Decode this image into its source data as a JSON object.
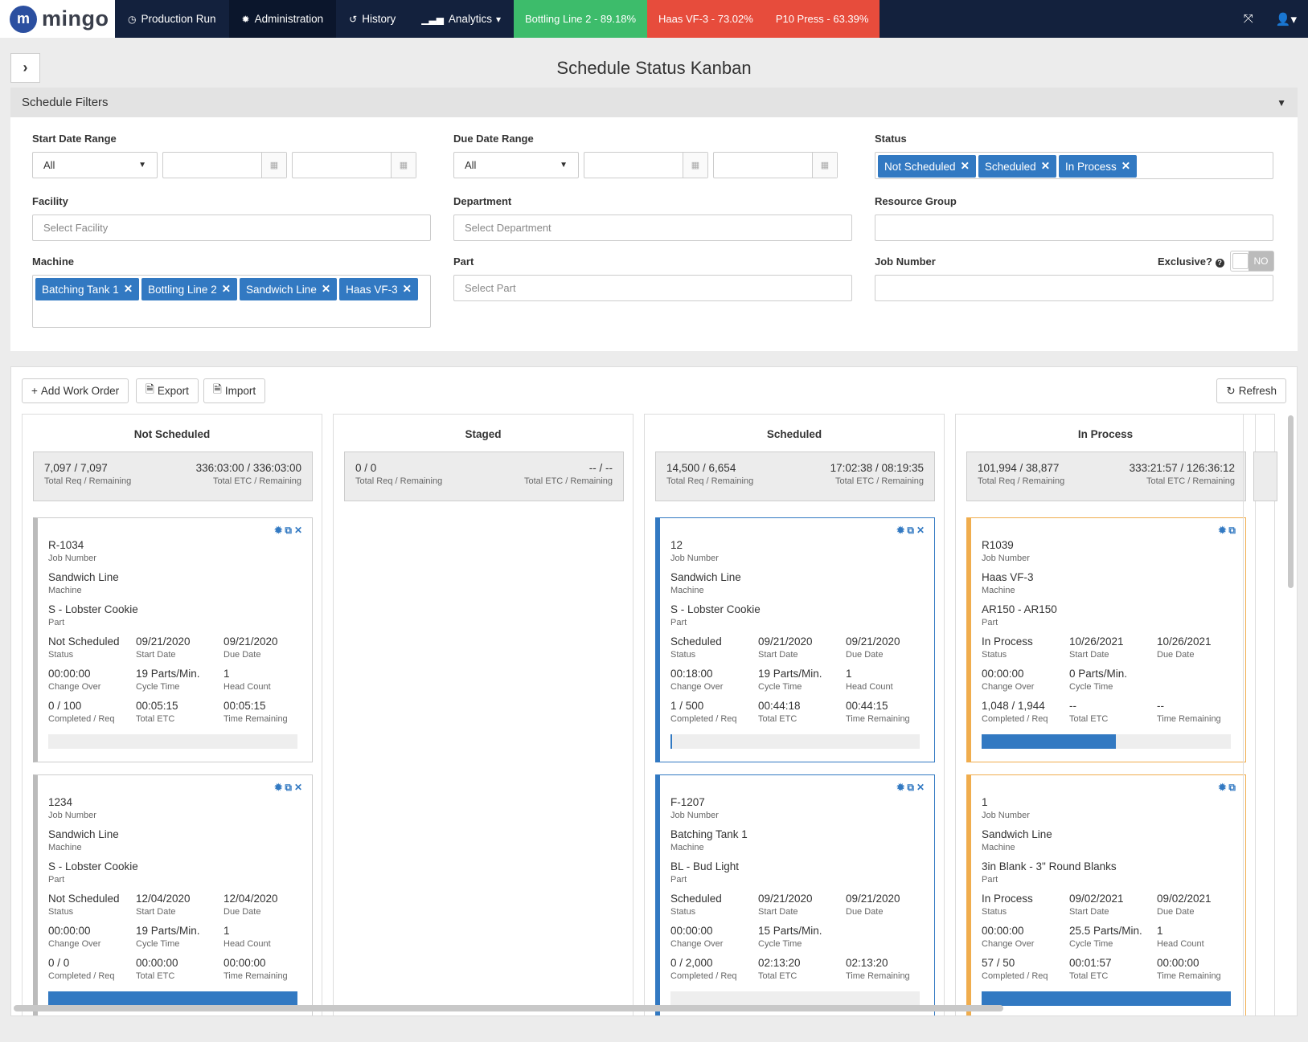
{
  "nav": {
    "brand": "mingo",
    "items": [
      {
        "label": "Production Run",
        "icon": "clock-icon"
      },
      {
        "label": "Administration",
        "icon": "gear-icon"
      },
      {
        "label": "History",
        "icon": "history-icon"
      },
      {
        "label": "Analytics",
        "icon": "bar-chart-icon"
      }
    ],
    "status_chips": [
      {
        "label": "Bottling Line 2 - 89.18%",
        "color": "#3dbc6b"
      },
      {
        "label": "Haas VF-3 - 73.02%",
        "color": "#e74c3c"
      },
      {
        "label": "P10 Press - 63.39%",
        "color": "#e74c3c"
      }
    ]
  },
  "page": {
    "title": "Schedule Status Kanban"
  },
  "filters": {
    "header": "Schedule Filters",
    "start_date_range": {
      "label": "Start Date Range",
      "value": "All"
    },
    "due_date_range": {
      "label": "Due Date Range",
      "value": "All"
    },
    "status": {
      "label": "Status",
      "tags": [
        "Not Scheduled",
        "Scheduled",
        "In Process"
      ]
    },
    "facility": {
      "label": "Facility",
      "placeholder": "Select Facility"
    },
    "department": {
      "label": "Department",
      "placeholder": "Select Department"
    },
    "resource_group": {
      "label": "Resource Group"
    },
    "machine": {
      "label": "Machine",
      "tags": [
        "Batching Tank 1",
        "Bottling Line 2",
        "Sandwich Line",
        "Haas VF-3"
      ]
    },
    "part": {
      "label": "Part",
      "placeholder": "Select Part"
    },
    "job_number": {
      "label": "Job Number"
    },
    "exclusive": {
      "label": "Exclusive?",
      "value": "NO"
    }
  },
  "toolbar": {
    "add": "Add Work Order",
    "export": "Export",
    "import": "Import",
    "refresh": "Refresh"
  },
  "labels": {
    "total_req": "Total Req / Remaining",
    "total_etc": "Total ETC / Remaining",
    "job_number": "Job Number",
    "machine": "Machine",
    "part": "Part",
    "status": "Status",
    "start_date": "Start Date",
    "due_date": "Due Date",
    "change_over": "Change Over",
    "cycle_time": "Cycle Time",
    "head_count": "Head Count",
    "completed": "Completed / Req",
    "total_etc_card": "Total ETC",
    "time_remaining": "Time Remaining"
  },
  "columns": [
    {
      "title": "Not Scheduled",
      "req": "7,097 / 7,097",
      "etc": "336:03:00 / 336:03:00",
      "cards": [
        {
          "job": "R-1034",
          "machine": "Sandwich Line",
          "part": "S - Lobster Cookie",
          "status": "Not Scheduled",
          "start": "09/21/2020",
          "due": "09/21/2020",
          "change_over": "00:00:00",
          "cycle": "19 Parts/Min.",
          "head": "1",
          "completed": "0 / 100",
          "etc": "00:05:15",
          "remaining": "00:05:15",
          "progress": 0
        },
        {
          "job": "1234",
          "machine": "Sandwich Line",
          "part": "S - Lobster Cookie",
          "status": "Not Scheduled",
          "start": "12/04/2020",
          "due": "12/04/2020",
          "change_over": "00:00:00",
          "cycle": "19 Parts/Min.",
          "head": "1",
          "completed": "0 / 0",
          "etc": "00:00:00",
          "remaining": "00:00:00",
          "progress": 1
        }
      ]
    },
    {
      "title": "Staged",
      "req": "0 / 0",
      "etc": "-- / --",
      "cards": []
    },
    {
      "title": "Scheduled",
      "req": "14,500 / 6,654",
      "etc": "17:02:38 / 08:19:35",
      "cards": [
        {
          "job": "12",
          "machine": "Sandwich Line",
          "part": "S - Lobster Cookie",
          "status": "Scheduled",
          "start": "09/21/2020",
          "due": "09/21/2020",
          "change_over": "00:18:00",
          "cycle": "19 Parts/Min.",
          "head": "1",
          "completed": "1 / 500",
          "etc": "00:44:18",
          "remaining": "00:44:15",
          "progress": 0.002
        },
        {
          "job": "F-1207",
          "machine": "Batching Tank 1",
          "part": "BL - Bud Light",
          "status": "Scheduled",
          "start": "09/21/2020",
          "due": "09/21/2020",
          "change_over": "00:00:00",
          "cycle": "15 Parts/Min.",
          "head": "",
          "completed": "0 / 2,000",
          "etc": "02:13:20",
          "remaining": "02:13:20",
          "progress": 0
        }
      ]
    },
    {
      "title": "In Process",
      "req": "101,994 / 38,877",
      "etc": "333:21:57 / 126:36:12",
      "cards": [
        {
          "job": "R1039",
          "machine": "Haas VF-3",
          "part": "AR150 - AR150",
          "status": "In Process",
          "start": "10/26/2021",
          "due": "10/26/2021",
          "change_over": "00:00:00",
          "cycle": "0 Parts/Min.",
          "head": "",
          "completed": "1,048 / 1,944",
          "etc": "--",
          "remaining": "--",
          "progress": 0.539
        },
        {
          "job": "1",
          "machine": "Sandwich Line",
          "part": "3in Blank - 3\" Round Blanks",
          "status": "In Process",
          "start": "09/02/2021",
          "due": "09/02/2021",
          "change_over": "00:00:00",
          "cycle": "25.5 Parts/Min.",
          "head": "1",
          "completed": "57 / 50",
          "etc": "00:01:57",
          "remaining": "00:00:00",
          "progress": 1
        }
      ]
    }
  ]
}
